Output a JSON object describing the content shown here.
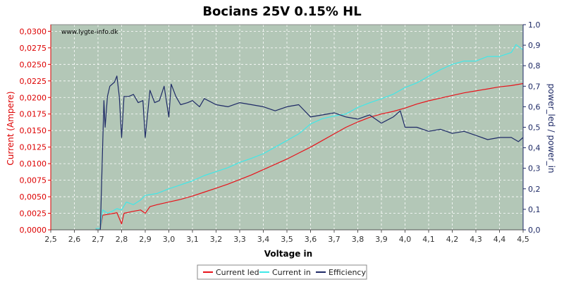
{
  "chart_data": {
    "type": "line",
    "title": "Bocians 25V 0.15% HL",
    "watermark": "www.lygte-info.dk",
    "xlabel": "Voltage in",
    "ylabel_left": "Current (Ampere)",
    "ylabel_right": "power_led / power_in",
    "xlim": [
      2.5,
      4.5
    ],
    "ylim_left": [
      0,
      0.031
    ],
    "ylim_right": [
      0,
      1.0
    ],
    "x_ticks": [
      "2,5",
      "2,6",
      "2,7",
      "2,8",
      "2,9",
      "3,0",
      "3,1",
      "3,2",
      "3,3",
      "3,4",
      "3,5",
      "3,6",
      "3,7",
      "3,8",
      "3,9",
      "4,0",
      "4,1",
      "4,2",
      "4,3",
      "4,4",
      "4,5"
    ],
    "y_left_ticks": [
      "0,0000",
      "0,0025",
      "0,0050",
      "0,0075",
      "0,0100",
      "0,0125",
      "0,0150",
      "0,0175",
      "0,0200",
      "0,0225",
      "0,0250",
      "0,0275",
      "0,0300"
    ],
    "y_right_ticks": [
      "0,0",
      "0,1",
      "0,2",
      "0,3",
      "0,4",
      "0,5",
      "0,6",
      "0,7",
      "0,8",
      "0,9",
      "1,0"
    ],
    "grid": true,
    "legend_position": "bottom",
    "colors": {
      "plot_bg": "#b3c7b7",
      "current_led": "#e8131b",
      "current_in": "#40e8e8",
      "efficiency": "#1e2a66",
      "left_axis": "#dd0000",
      "right_axis": "#1e2a66"
    },
    "series": [
      {
        "name": "Current led",
        "axis": "left",
        "x": [
          2.69,
          2.71,
          2.72,
          2.75,
          2.77,
          2.78,
          2.8,
          2.81,
          2.85,
          2.88,
          2.9,
          2.92,
          2.95,
          3.0,
          3.05,
          3.1,
          3.15,
          3.2,
          3.25,
          3.3,
          3.35,
          3.4,
          3.45,
          3.5,
          3.55,
          3.6,
          3.65,
          3.7,
          3.75,
          3.8,
          3.85,
          3.9,
          3.95,
          4.0,
          4.05,
          4.1,
          4.15,
          4.2,
          4.25,
          4.3,
          4.35,
          4.4,
          4.45,
          4.5
        ],
        "y": [
          0.0002,
          0.0002,
          0.0022,
          0.0024,
          0.0025,
          0.0026,
          0.0009,
          0.0025,
          0.0028,
          0.003,
          0.0025,
          0.0035,
          0.0038,
          0.0042,
          0.0046,
          0.0051,
          0.0057,
          0.0063,
          0.0069,
          0.0076,
          0.0083,
          0.0091,
          0.0099,
          0.0107,
          0.0116,
          0.0125,
          0.0135,
          0.0145,
          0.0155,
          0.0163,
          0.017,
          0.0175,
          0.0179,
          0.0184,
          0.019,
          0.0195,
          0.0199,
          0.0203,
          0.0207,
          0.021,
          0.0213,
          0.0216,
          0.0218,
          0.0221
        ]
      },
      {
        "name": "Current in",
        "axis": "left",
        "x": [
          2.69,
          2.71,
          2.72,
          2.74,
          2.76,
          2.78,
          2.8,
          2.82,
          2.85,
          2.88,
          2.9,
          2.95,
          3.0,
          3.05,
          3.1,
          3.15,
          3.2,
          3.25,
          3.3,
          3.35,
          3.4,
          3.45,
          3.5,
          3.55,
          3.6,
          3.65,
          3.7,
          3.75,
          3.8,
          3.85,
          3.9,
          3.95,
          4.0,
          4.05,
          4.1,
          4.15,
          4.2,
          4.25,
          4.3,
          4.35,
          4.4,
          4.45,
          4.47,
          4.5
        ],
        "y": [
          0.0002,
          0.0002,
          0.003,
          0.0025,
          0.0028,
          0.0032,
          0.003,
          0.0042,
          0.0038,
          0.0045,
          0.0052,
          0.0055,
          0.0062,
          0.0068,
          0.0074,
          0.0082,
          0.0088,
          0.0094,
          0.0102,
          0.0108,
          0.0115,
          0.0125,
          0.0135,
          0.0145,
          0.016,
          0.0168,
          0.0172,
          0.0175,
          0.0185,
          0.0192,
          0.0198,
          0.0205,
          0.0215,
          0.0222,
          0.0232,
          0.0242,
          0.025,
          0.0255,
          0.0255,
          0.0262,
          0.0262,
          0.0268,
          0.028,
          0.0272
        ]
      },
      {
        "name": "Efficiency",
        "axis": "right",
        "x": [
          2.69,
          2.71,
          2.725,
          2.73,
          2.74,
          2.75,
          2.77,
          2.78,
          2.79,
          2.8,
          2.81,
          2.83,
          2.85,
          2.87,
          2.89,
          2.9,
          2.92,
          2.94,
          2.96,
          2.98,
          3.0,
          3.01,
          3.03,
          3.05,
          3.08,
          3.1,
          3.13,
          3.15,
          3.2,
          3.25,
          3.3,
          3.35,
          3.4,
          3.45,
          3.5,
          3.55,
          3.6,
          3.65,
          3.7,
          3.75,
          3.8,
          3.85,
          3.9,
          3.95,
          3.98,
          4.0,
          4.05,
          4.1,
          4.15,
          4.2,
          4.25,
          4.3,
          4.35,
          4.4,
          4.45,
          4.48,
          4.5
        ],
        "y": [
          0.0,
          0.0,
          0.63,
          0.5,
          0.65,
          0.7,
          0.72,
          0.75,
          0.65,
          0.45,
          0.65,
          0.65,
          0.66,
          0.62,
          0.63,
          0.45,
          0.68,
          0.62,
          0.63,
          0.7,
          0.55,
          0.71,
          0.65,
          0.61,
          0.62,
          0.63,
          0.6,
          0.64,
          0.61,
          0.6,
          0.62,
          0.61,
          0.6,
          0.58,
          0.6,
          0.61,
          0.55,
          0.56,
          0.57,
          0.55,
          0.54,
          0.56,
          0.52,
          0.55,
          0.58,
          0.5,
          0.5,
          0.48,
          0.49,
          0.47,
          0.48,
          0.46,
          0.44,
          0.45,
          0.45,
          0.43,
          0.45
        ]
      }
    ]
  }
}
